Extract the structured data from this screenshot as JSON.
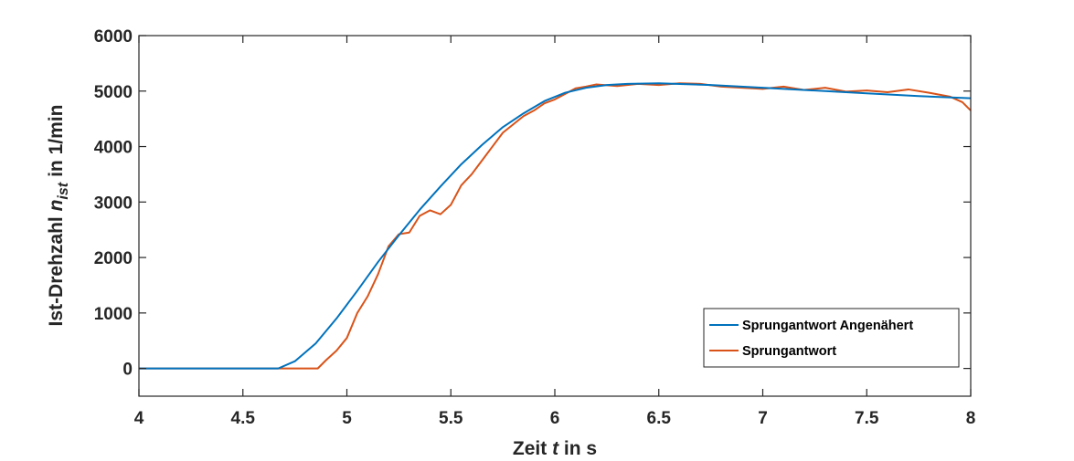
{
  "chart_data": {
    "type": "line",
    "xlabel": {
      "pre": "Zeit",
      "var": "t",
      "post": "in s"
    },
    "ylabel": {
      "pre": "Ist-Drehzahl",
      "var": "n",
      "sub": "ist",
      "post": "in 1/min"
    },
    "xlim": [
      4,
      8
    ],
    "ylim": [
      -500,
      6000
    ],
    "xticks": [
      4,
      4.5,
      5,
      5.5,
      6,
      6.5,
      7,
      7.5,
      8
    ],
    "xtick_labels": [
      "4",
      "4.5",
      "5",
      "5.5",
      "6",
      "6.5",
      "7",
      "7.5",
      "8"
    ],
    "yticks": [
      0,
      1000,
      2000,
      3000,
      4000,
      5000,
      6000
    ],
    "ytick_labels": [
      "0",
      "1000",
      "2000",
      "3000",
      "4000",
      "5000",
      "6000"
    ],
    "grid": false,
    "legend_position": "lower-right",
    "series": [
      {
        "name": "Sprungantwort Angenähert",
        "color": "#0072BD",
        "x": [
          4.0,
          4.6,
          4.67,
          4.75,
          4.85,
          4.95,
          5.05,
          5.15,
          5.25,
          5.35,
          5.45,
          5.55,
          5.65,
          5.75,
          5.85,
          5.95,
          6.05,
          6.15,
          6.25,
          6.35,
          6.5,
          6.75,
          7.0,
          7.25,
          7.5,
          7.75,
          8.0
        ],
        "y": [
          0,
          0,
          0,
          130,
          450,
          900,
          1400,
          1920,
          2400,
          2860,
          3280,
          3680,
          4030,
          4350,
          4600,
          4820,
          4970,
          5060,
          5110,
          5130,
          5140,
          5110,
          5060,
          5010,
          4960,
          4910,
          4870
        ]
      },
      {
        "name": "Sprungantwort",
        "color": "#D95319",
        "x": [
          4.0,
          4.5,
          4.86,
          4.9,
          4.95,
          5.0,
          5.05,
          5.1,
          5.15,
          5.2,
          5.25,
          5.3,
          5.35,
          5.4,
          5.45,
          5.5,
          5.55,
          5.6,
          5.65,
          5.7,
          5.75,
          5.8,
          5.85,
          5.9,
          5.95,
          6.0,
          6.05,
          6.1,
          6.15,
          6.2,
          6.3,
          6.4,
          6.5,
          6.6,
          6.7,
          6.8,
          6.9,
          7.0,
          7.1,
          7.2,
          7.3,
          7.4,
          7.5,
          7.6,
          7.7,
          7.8,
          7.9,
          7.96,
          8.0
        ],
        "y": [
          0,
          0,
          0,
          150,
          320,
          550,
          1000,
          1300,
          1700,
          2200,
          2420,
          2450,
          2750,
          2850,
          2780,
          2950,
          3300,
          3500,
          3750,
          4000,
          4250,
          4400,
          4550,
          4650,
          4780,
          4850,
          4950,
          5050,
          5080,
          5120,
          5090,
          5130,
          5110,
          5140,
          5130,
          5080,
          5060,
          5040,
          5080,
          5020,
          5060,
          4990,
          5010,
          4980,
          5030,
          4970,
          4900,
          4800,
          4650
        ]
      }
    ]
  }
}
